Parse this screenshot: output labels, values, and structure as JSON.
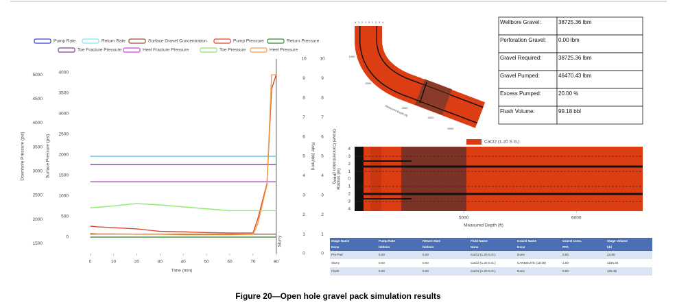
{
  "caption": "Figure 20—Open hole gravel pack simulation results",
  "chart_data": [
    {
      "type": "line",
      "xlabel": "Time (min)",
      "ylabel": "Downhole Pressure (psi)",
      "y2label": "Surface Pressure (psi)",
      "y3label": "Rate (bbl/min)",
      "y4label": "Gravel Concentration (PPA)",
      "x": [
        0,
        3,
        10,
        20,
        30,
        40,
        50,
        60,
        70,
        72,
        76,
        78,
        80
      ],
      "xlim": [
        -4,
        84.5
      ],
      "xticks": [
        0,
        10,
        20,
        30,
        40,
        50,
        60,
        70,
        80
      ],
      "ylim": [
        1290,
        5330
      ],
      "yticks": [
        1500,
        2000,
        2500,
        3000,
        3500,
        4000,
        4500,
        5000
      ],
      "y2lim": [
        -400,
        4330
      ],
      "y2ticks": [
        0,
        500,
        1000,
        1500,
        2000,
        2500,
        3000,
        3500,
        4000
      ],
      "y3lim": [
        0,
        10
      ],
      "y3ticks": [
        0,
        1,
        2,
        3,
        4,
        5,
        6,
        7,
        8,
        9,
        10
      ],
      "y4lim": [
        0,
        10
      ],
      "y4ticks": [
        0,
        1,
        2,
        3,
        4,
        5,
        6,
        7,
        8,
        9,
        10
      ],
      "annotations": [
        {
          "x": 80,
          "text": "Slurry"
        }
      ],
      "series": [
        {
          "name": "Pump Rate",
          "color": "#3b3bd6",
          "axis": "y3",
          "values": [
            5,
            5,
            5,
            5,
            5,
            5,
            5,
            5,
            5,
            5,
            5,
            5,
            5
          ]
        },
        {
          "name": "Return Rate",
          "color": "#7fe6f0",
          "axis": "y3",
          "values": [
            5,
            5,
            5,
            5,
            5,
            5,
            5,
            5,
            5,
            5,
            5,
            5,
            5
          ]
        },
        {
          "name": "Surface Gravel Concentration",
          "color": "#9c4a3a",
          "axis": "y4",
          "values": [
            1,
            1,
            1,
            1,
            1,
            1,
            1,
            1,
            1,
            1,
            1,
            1,
            1
          ]
        },
        {
          "name": "Pump Pressure",
          "color": "#e0442a",
          "axis": "y2",
          "values": [
            267,
            250,
            230,
            200,
            140,
            130,
            110,
            100,
            100,
            430,
            1300,
            3600,
            3950
          ]
        },
        {
          "name": "Return Pressure",
          "color": "#2e8b2e",
          "axis": "y2",
          "values": [
            0,
            0,
            0,
            0,
            0,
            0,
            0,
            0,
            0,
            0,
            0,
            0,
            0
          ]
        },
        {
          "name": "Toe Fracture Pressure",
          "color": "#7b3f8a",
          "axis": "y",
          "values": [
            3140,
            3140,
            3140,
            3140,
            3140,
            3140,
            3140,
            3140,
            3140,
            3140,
            3140,
            3140,
            3140
          ]
        },
        {
          "name": "Heel Fracture Pressure",
          "color": "#d040e0",
          "axis": "y",
          "values": [
            2780,
            2780,
            2780,
            2780,
            2780,
            2780,
            2780,
            2780,
            2780,
            2780,
            2780,
            2780,
            2780
          ]
        },
        {
          "name": "Toe Pressure",
          "color": "#8ee86a",
          "axis": "y",
          "values": [
            2240,
            2250,
            2280,
            2330,
            2300,
            2260,
            2220,
            2180,
            2180,
            2180,
            2180,
            2180,
            2180
          ]
        },
        {
          "name": "Heel Pressure",
          "color": "#f0a040",
          "axis": "y",
          "values": [
            1710,
            1700,
            1700,
            1690,
            1690,
            1680,
            1680,
            1680,
            1690,
            1900,
            2710,
            5000,
            5000
          ]
        }
      ]
    },
    {
      "type": "radial-profile",
      "xlabel": "Measured Depth (ft)",
      "ylabel": "Radius (in)",
      "xlim": [
        4030,
        6590
      ],
      "xticks": [
        5000,
        6000
      ],
      "ylim": [
        -4.3,
        4.3
      ],
      "yticks": [
        4,
        3,
        2,
        1,
        0,
        {
          "value": -1,
          "label": "1"
        },
        {
          "value": -2,
          "label": "2"
        },
        {
          "value": -3,
          "label": "3"
        },
        {
          "value": -4,
          "label": "4"
        }
      ],
      "series": [
        {
          "name": "CaCl2 (1.20 S.G.)",
          "color": "#dd3d12"
        }
      ]
    }
  ],
  "wellbore_diagram": {
    "radius_labels": [
      "4",
      "3",
      "2",
      "1",
      "0",
      "1",
      "2",
      "3",
      "4"
    ],
    "depth_labels": [
      "1000",
      "2000",
      "3000",
      "4000",
      "5000"
    ],
    "axis_label": "Measured Depth (ft)"
  },
  "summary_table": {
    "rows": [
      [
        "Wellbore Gravel:",
        "38725.36 lbm"
      ],
      [
        "Perforation  Gravel:",
        "0.00 lbm"
      ],
      [
        "Gravel Required:",
        "38725.36 lbm"
      ],
      [
        "Gravel Pumped:",
        "46470.43 lbm"
      ],
      [
        "Excess Pumped:",
        "20.00 %"
      ],
      [
        "Flush Volume:",
        "99.18 bbl"
      ]
    ]
  },
  "stage_table": {
    "header": [
      "Stage Name",
      "Pump Rate",
      "Return Rate",
      "Fluid Name",
      "Gravel Name",
      "Gravel Conc.",
      "Stage Volume"
    ],
    "units": [
      "None",
      "bbl/min",
      "bbl/min",
      "None",
      "None",
      "PPA",
      "bbl"
    ],
    "rows": [
      [
        "Pre Pad",
        "5.00",
        "5.00",
        "CaCl2 (1.20 S.G.)",
        "None",
        "0.00",
        "23.80"
      ],
      [
        "Slurry",
        "5.00",
        "5.00",
        "CaCl2 (1.20 S.G.)",
        "CARBOLITE (12/18)",
        "1.00",
        "1155.36"
      ],
      [
        "Flush",
        "5.00",
        "5.00",
        "CaCl2 (1.20 S.G.)",
        "None",
        "0.00",
        "105.38"
      ]
    ]
  }
}
